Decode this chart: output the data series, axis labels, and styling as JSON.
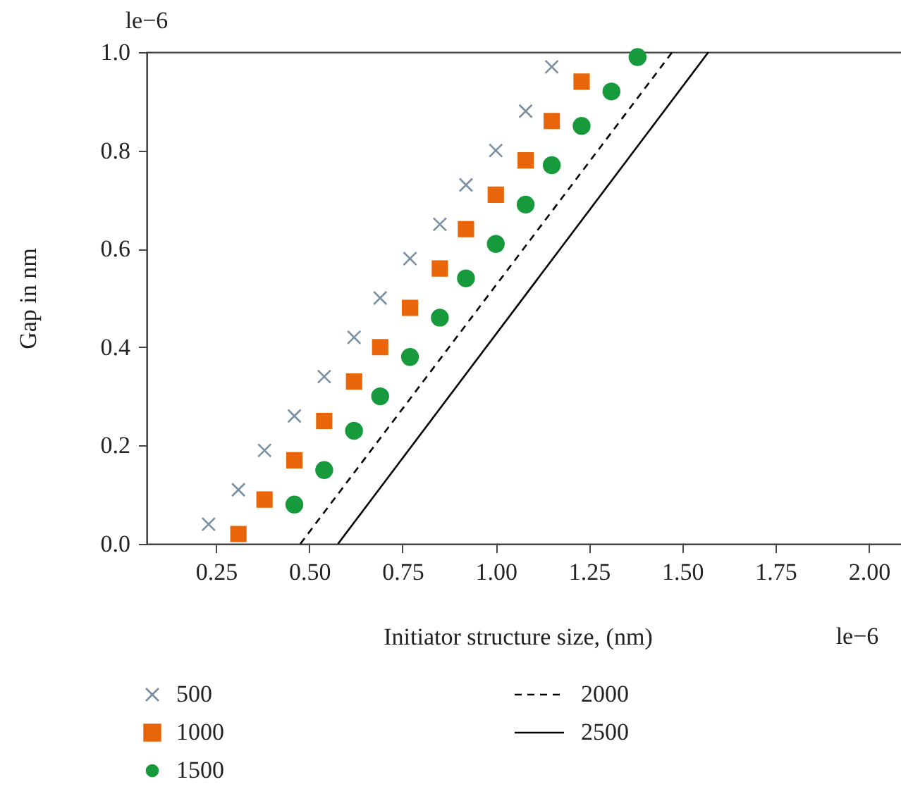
{
  "chart_data": {
    "type": "scatter",
    "xlabel": "Initiator structure size, (nm)",
    "ylabel": "Gap in nm",
    "annotations": [
      "le−6",
      "le−6"
    ],
    "xlim": [
      0.064,
      2.09
    ],
    "ylim": [
      0,
      1.0
    ],
    "xticks": [
      {
        "value": 0.25,
        "label": "0.25"
      },
      {
        "value": 0.5,
        "label": "0.50"
      },
      {
        "value": 0.75,
        "label": "0.75"
      },
      {
        "value": 1.0,
        "label": "1.00"
      },
      {
        "value": 1.25,
        "label": "1.25"
      },
      {
        "value": 1.5,
        "label": "1.50"
      },
      {
        "value": 1.75,
        "label": "1.75"
      },
      {
        "value": 2.0,
        "label": "2.00"
      }
    ],
    "yticks": [
      {
        "value": 0,
        "label": "0.0"
      },
      {
        "value": 0.2,
        "label": "0.2"
      },
      {
        "value": 0.4,
        "label": "0.4"
      },
      {
        "value": 0.6,
        "label": "0.6"
      },
      {
        "value": 0.8,
        "label": "0.8"
      },
      {
        "value": 1.0,
        "label": "1.0"
      }
    ],
    "grid": false,
    "legend": "bottom",
    "series": [
      {
        "name": "500",
        "type": "scatter",
        "marker": "cross",
        "color": "#7b8fa3",
        "x": [
          0.23,
          0.31,
          0.38,
          0.46,
          0.54,
          0.62,
          0.69,
          0.77,
          0.85,
          0.92,
          1.0,
          1.08,
          1.15
        ],
        "values": [
          0.04,
          0.11,
          0.19,
          0.26,
          0.34,
          0.42,
          0.5,
          0.58,
          0.65,
          0.73,
          0.8,
          0.88,
          0.97
        ]
      },
      {
        "name": "1000",
        "type": "scatter",
        "marker": "square",
        "color": "#e8650a",
        "x": [
          0.31,
          0.38,
          0.46,
          0.54,
          0.62,
          0.69,
          0.77,
          0.85,
          0.92,
          1.0,
          1.08,
          1.15,
          1.23
        ],
        "values": [
          0.02,
          0.09,
          0.17,
          0.25,
          0.33,
          0.4,
          0.48,
          0.56,
          0.64,
          0.71,
          0.78,
          0.86,
          0.94
        ]
      },
      {
        "name": "1500",
        "type": "scatter",
        "marker": "circle",
        "color": "#179a3c",
        "x": [
          0.46,
          0.54,
          0.62,
          0.69,
          0.77,
          0.85,
          0.92,
          1.0,
          1.08,
          1.15,
          1.23,
          1.31,
          1.38
        ],
        "values": [
          0.08,
          0.15,
          0.23,
          0.3,
          0.38,
          0.46,
          0.54,
          0.61,
          0.69,
          0.77,
          0.85,
          0.92,
          0.99
        ]
      },
      {
        "name": "2000",
        "type": "line",
        "line_style": "dashed",
        "color": "#000000",
        "x": [
          0.476,
          1.473
        ],
        "values": [
          0,
          1.0
        ]
      },
      {
        "name": "2500",
        "type": "line",
        "line_style": "solid",
        "color": "#000000",
        "x": [
          0.577,
          1.57
        ],
        "values": [
          0,
          1.0
        ]
      }
    ]
  }
}
